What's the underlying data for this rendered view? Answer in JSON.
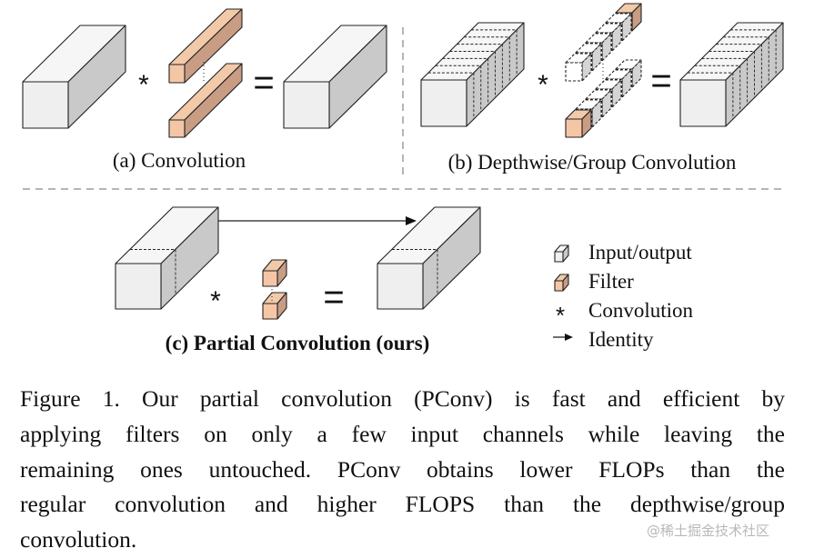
{
  "figure": {
    "panels": [
      {
        "id": "a",
        "label": "(a) Convolution"
      },
      {
        "id": "b",
        "label": "(b) Depthwise/Group Convolution"
      },
      {
        "id": "c",
        "label": "(c) Partial Convolution (ours)"
      }
    ],
    "operators": {
      "convolution": "*",
      "equals": "="
    },
    "legend": [
      {
        "icon": "input-output-cube-icon",
        "label": "Input/output"
      },
      {
        "icon": "filter-cube-icon",
        "label": "Filter"
      },
      {
        "icon": "asterisk-icon",
        "label": "Convolution"
      },
      {
        "icon": "arrow-right-icon",
        "label": "Identity"
      }
    ],
    "colors": {
      "io_front": "#efefef",
      "io_top": "#f6f6f6",
      "io_side": "#c9c9c9",
      "filter_front": "#f5c6a6",
      "filter_top": "#f2caa9",
      "filter_side": "#c89d84",
      "divider": "#b5b5b5"
    }
  },
  "caption": {
    "lines": [
      "Figure 1. Our partial convolution (PConv) is fast and efficient by",
      "applying filters on only a few input channels while leaving the",
      "remaining ones untouched. PConv obtains lower FLOPs than the",
      "regular convolution and higher FLOPS than the depthwise/group",
      "convolution."
    ]
  },
  "watermark": "@稀土掘金技术社区"
}
